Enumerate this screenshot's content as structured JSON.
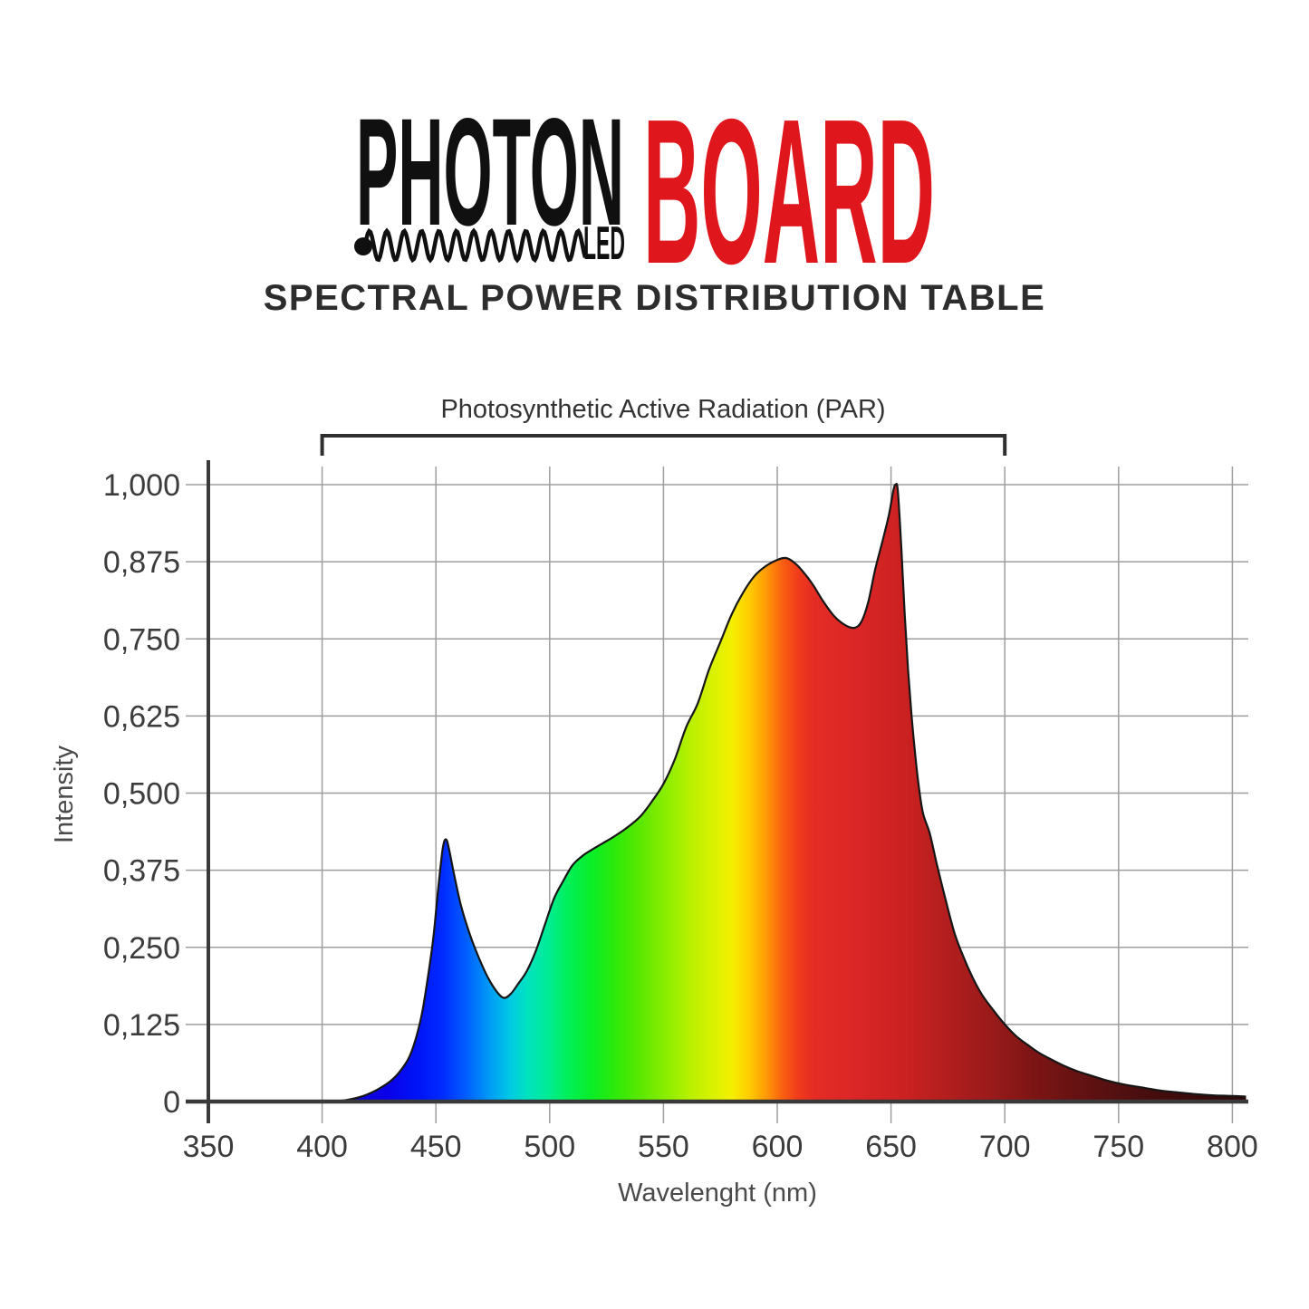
{
  "page": {
    "background": "#ffffff"
  },
  "logo": {
    "word_primary": "PHOTON",
    "word_sub": "LED",
    "word_secondary": "BOARD",
    "primary_color": "#101010",
    "secondary_color": "#e0161d",
    "wave_icon": "sine-wave-with-dot"
  },
  "title": {
    "text": "SPECTRAL POWER DISTRIBUTION TABLE",
    "color": "#2d2d2d"
  },
  "chart_data": {
    "type": "area",
    "title": "",
    "xlabel": "Wavelenght (nm)",
    "ylabel": "Intensity",
    "xlim": [
      350,
      806
    ],
    "ylim": [
      0,
      1
    ],
    "grid": true,
    "x_ticks": [
      {
        "label": "350",
        "value": 350
      },
      {
        "label": "400",
        "value": 400
      },
      {
        "label": "450",
        "value": 450
      },
      {
        "label": "500",
        "value": 500
      },
      {
        "label": "550",
        "value": 550
      },
      {
        "label": "600",
        "value": 600
      },
      {
        "label": "650",
        "value": 650
      },
      {
        "label": "700",
        "value": 700
      },
      {
        "label": "750",
        "value": 750
      },
      {
        "label": "800",
        "value": 800
      }
    ],
    "y_ticks": [
      {
        "label": "0",
        "value": 0
      },
      {
        "label": "0,125",
        "value": 0.125
      },
      {
        "label": "0,250",
        "value": 0.25
      },
      {
        "label": "0,375",
        "value": 0.375
      },
      {
        "label": "0,500",
        "value": 0.5
      },
      {
        "label": "0,625",
        "value": 0.625
      },
      {
        "label": "0,750",
        "value": 0.75
      },
      {
        "label": "0,875",
        "value": 0.875
      },
      {
        "label": "1,000",
        "value": 1
      }
    ],
    "annotation": {
      "label": "Photosynthetic Active Radiation (PAR)",
      "from_nm": 400,
      "to_nm": 700
    },
    "series": [
      {
        "name": "spectral-power-distribution",
        "points": [
          [
            400,
            0
          ],
          [
            406,
            0.001
          ],
          [
            410,
            0.002
          ],
          [
            414,
            0.005
          ],
          [
            418,
            0.009
          ],
          [
            422,
            0.015
          ],
          [
            426,
            0.023
          ],
          [
            430,
            0.033
          ],
          [
            434,
            0.048
          ],
          [
            438,
            0.07
          ],
          [
            441,
            0.1
          ],
          [
            444,
            0.145
          ],
          [
            447,
            0.215
          ],
          [
            449,
            0.27
          ],
          [
            451,
            0.345
          ],
          [
            453,
            0.41
          ],
          [
            454.5,
            0.425
          ],
          [
            456,
            0.405
          ],
          [
            458,
            0.368
          ],
          [
            461,
            0.318
          ],
          [
            465,
            0.27
          ],
          [
            469,
            0.232
          ],
          [
            473,
            0.2
          ],
          [
            477,
            0.177
          ],
          [
            480,
            0.168
          ],
          [
            483,
            0.175
          ],
          [
            486,
            0.19
          ],
          [
            490,
            0.212
          ],
          [
            494,
            0.245
          ],
          [
            498,
            0.288
          ],
          [
            502,
            0.33
          ],
          [
            506,
            0.358
          ],
          [
            510,
            0.383
          ],
          [
            514,
            0.397
          ],
          [
            518,
            0.407
          ],
          [
            523,
            0.418
          ],
          [
            528,
            0.429
          ],
          [
            534,
            0.444
          ],
          [
            540,
            0.463
          ],
          [
            545,
            0.487
          ],
          [
            550,
            0.515
          ],
          [
            555,
            0.555
          ],
          [
            560,
            0.607
          ],
          [
            565,
            0.645
          ],
          [
            570,
            0.7
          ],
          [
            575,
            0.745
          ],
          [
            580,
            0.79
          ],
          [
            585,
            0.825
          ],
          [
            590,
            0.852
          ],
          [
            595,
            0.868
          ],
          [
            600,
            0.878
          ],
          [
            604,
            0.881
          ],
          [
            608,
            0.872
          ],
          [
            612,
            0.856
          ],
          [
            616,
            0.836
          ],
          [
            620,
            0.812
          ],
          [
            625,
            0.787
          ],
          [
            630,
            0.772
          ],
          [
            634,
            0.768
          ],
          [
            637,
            0.778
          ],
          [
            640,
            0.81
          ],
          [
            643,
            0.862
          ],
          [
            646,
            0.905
          ],
          [
            649,
            0.95
          ],
          [
            651,
            0.99
          ],
          [
            652,
            1.0
          ],
          [
            653,
            0.99
          ],
          [
            654.5,
            0.9
          ],
          [
            656,
            0.79
          ],
          [
            657.5,
            0.7
          ],
          [
            659,
            0.627
          ],
          [
            660.5,
            0.567
          ],
          [
            662,
            0.517
          ],
          [
            664,
            0.468
          ],
          [
            667,
            0.435
          ],
          [
            670,
            0.387
          ],
          [
            674,
            0.327
          ],
          [
            678,
            0.272
          ],
          [
            682,
            0.233
          ],
          [
            686,
            0.2
          ],
          [
            690,
            0.173
          ],
          [
            695,
            0.148
          ],
          [
            700,
            0.125
          ],
          [
            705,
            0.106
          ],
          [
            710,
            0.092
          ],
          [
            715,
            0.079
          ],
          [
            720,
            0.069
          ],
          [
            726,
            0.058
          ],
          [
            732,
            0.049
          ],
          [
            738,
            0.042
          ],
          [
            745,
            0.034
          ],
          [
            752,
            0.028
          ],
          [
            760,
            0.023
          ],
          [
            768,
            0.018
          ],
          [
            776,
            0.015
          ],
          [
            784,
            0.012
          ],
          [
            792,
            0.01
          ],
          [
            800,
            0.009
          ],
          [
            806,
            0.008
          ]
        ]
      }
    ],
    "spectrum_gradient": [
      [
        400,
        "#1500c8"
      ],
      [
        428,
        "#0a00e8"
      ],
      [
        443,
        "#0016f8"
      ],
      [
        453,
        "#002cff"
      ],
      [
        462,
        "#0058ff"
      ],
      [
        472,
        "#0092f8"
      ],
      [
        482,
        "#00c8e6"
      ],
      [
        490,
        "#00e2c0"
      ],
      [
        499,
        "#00ec96"
      ],
      [
        508,
        "#00f058"
      ],
      [
        518,
        "#0aee28"
      ],
      [
        528,
        "#2aea0a"
      ],
      [
        540,
        "#5ce800"
      ],
      [
        552,
        "#90ee00"
      ],
      [
        562,
        "#baf000"
      ],
      [
        572,
        "#daf200"
      ],
      [
        580,
        "#f4f000"
      ],
      [
        588,
        "#ffc800"
      ],
      [
        595,
        "#ff9a06"
      ],
      [
        602,
        "#fa6010"
      ],
      [
        609,
        "#f03c1c"
      ],
      [
        616,
        "#e42c24"
      ],
      [
        635,
        "#da2626"
      ],
      [
        655,
        "#cc2121"
      ],
      [
        675,
        "#b21e1e"
      ],
      [
        695,
        "#981a1a"
      ],
      [
        712,
        "#7e1515"
      ],
      [
        730,
        "#671212"
      ],
      [
        750,
        "#521010"
      ],
      [
        770,
        "#420c0c"
      ],
      [
        790,
        "#360a0a"
      ],
      [
        806,
        "#2d0808"
      ]
    ],
    "colors": {
      "axis": "#3a3a3a",
      "grid": "#9e9e9e",
      "curve_outline": "#161616",
      "tick_text": "#3c3c3c",
      "axis_title_text": "#4a4a4a",
      "bracket": "#2f2f2f"
    }
  }
}
